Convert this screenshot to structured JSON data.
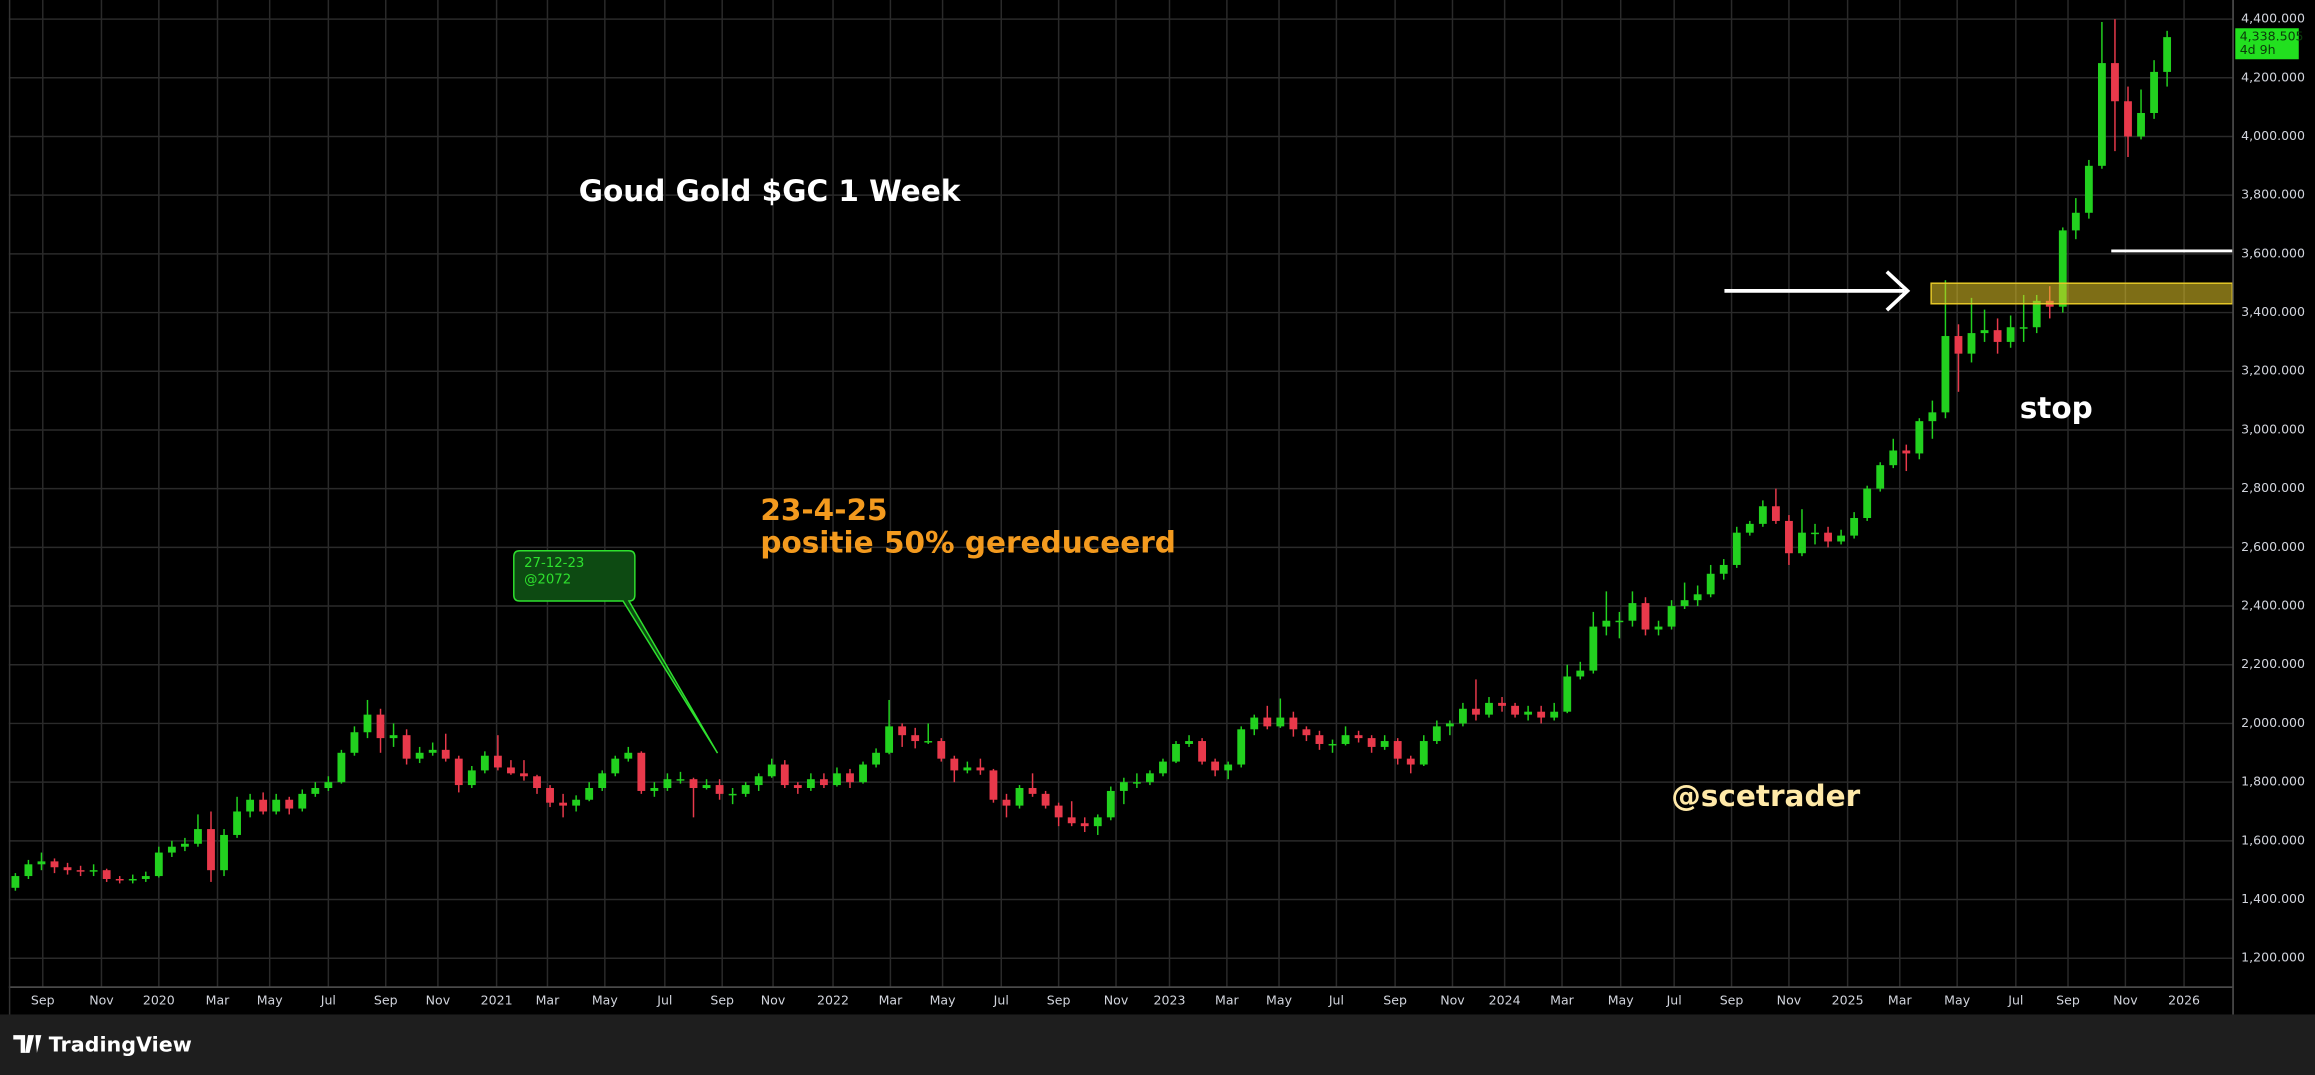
{
  "chart_data": {
    "type": "candlestick",
    "title": "Goud Gold $GC 1 Week",
    "ohlc": [
      [
        1440,
        1490,
        1430,
        1480
      ],
      [
        1480,
        1535,
        1470,
        1520
      ],
      [
        1520,
        1560,
        1500,
        1530
      ],
      [
        1530,
        1540,
        1490,
        1510
      ],
      [
        1510,
        1525,
        1485,
        1500
      ],
      [
        1500,
        1515,
        1480,
        1495
      ],
      [
        1495,
        1520,
        1480,
        1500
      ],
      [
        1500,
        1505,
        1460,
        1470
      ],
      [
        1470,
        1480,
        1455,
        1465
      ],
      [
        1465,
        1485,
        1455,
        1470
      ],
      [
        1470,
        1495,
        1460,
        1480
      ],
      [
        1480,
        1580,
        1475,
        1560
      ],
      [
        1560,
        1600,
        1545,
        1580
      ],
      [
        1580,
        1610,
        1565,
        1590
      ],
      [
        1590,
        1690,
        1580,
        1640
      ],
      [
        1640,
        1700,
        1460,
        1500
      ],
      [
        1500,
        1640,
        1480,
        1620
      ],
      [
        1620,
        1750,
        1610,
        1700
      ],
      [
        1700,
        1760,
        1680,
        1740
      ],
      [
        1740,
        1765,
        1690,
        1700
      ],
      [
        1700,
        1760,
        1690,
        1740
      ],
      [
        1740,
        1750,
        1690,
        1710
      ],
      [
        1710,
        1775,
        1700,
        1760
      ],
      [
        1760,
        1800,
        1750,
        1780
      ],
      [
        1780,
        1820,
        1770,
        1800
      ],
      [
        1800,
        1910,
        1795,
        1900
      ],
      [
        1900,
        1990,
        1890,
        1970
      ],
      [
        1970,
        2080,
        1950,
        2030
      ],
      [
        2030,
        2050,
        1900,
        1950
      ],
      [
        1950,
        2000,
        1920,
        1960
      ],
      [
        1960,
        1980,
        1860,
        1880
      ],
      [
        1880,
        1920,
        1865,
        1900
      ],
      [
        1900,
        1935,
        1890,
        1910
      ],
      [
        1910,
        1965,
        1870,
        1880
      ],
      [
        1880,
        1890,
        1765,
        1790
      ],
      [
        1790,
        1855,
        1780,
        1840
      ],
      [
        1840,
        1905,
        1830,
        1890
      ],
      [
        1890,
        1960,
        1840,
        1850
      ],
      [
        1850,
        1875,
        1825,
        1830
      ],
      [
        1830,
        1875,
        1805,
        1820
      ],
      [
        1820,
        1825,
        1760,
        1780
      ],
      [
        1780,
        1790,
        1715,
        1730
      ],
      [
        1730,
        1760,
        1680,
        1720
      ],
      [
        1720,
        1755,
        1700,
        1740
      ],
      [
        1740,
        1800,
        1735,
        1780
      ],
      [
        1780,
        1840,
        1770,
        1830
      ],
      [
        1830,
        1890,
        1820,
        1880
      ],
      [
        1880,
        1920,
        1870,
        1900
      ],
      [
        1900,
        1905,
        1760,
        1770
      ],
      [
        1770,
        1800,
        1750,
        1780
      ],
      [
        1780,
        1830,
        1770,
        1810
      ],
      [
        1810,
        1835,
        1795,
        1810
      ],
      [
        1810,
        1815,
        1680,
        1780
      ],
      [
        1780,
        1810,
        1775,
        1790
      ],
      [
        1790,
        1810,
        1740,
        1760
      ],
      [
        1760,
        1780,
        1725,
        1760
      ],
      [
        1760,
        1800,
        1750,
        1790
      ],
      [
        1790,
        1830,
        1770,
        1820
      ],
      [
        1820,
        1880,
        1815,
        1860
      ],
      [
        1860,
        1875,
        1780,
        1790
      ],
      [
        1790,
        1800,
        1760,
        1780
      ],
      [
        1780,
        1830,
        1770,
        1810
      ],
      [
        1810,
        1830,
        1780,
        1790
      ],
      [
        1790,
        1850,
        1785,
        1830
      ],
      [
        1830,
        1845,
        1780,
        1800
      ],
      [
        1800,
        1870,
        1795,
        1860
      ],
      [
        1860,
        1915,
        1850,
        1900
      ],
      [
        1900,
        2080,
        1895,
        1990
      ],
      [
        1990,
        2000,
        1920,
        1960
      ],
      [
        1960,
        1985,
        1915,
        1940
      ],
      [
        1940,
        2000,
        1930,
        1940
      ],
      [
        1940,
        1950,
        1870,
        1880
      ],
      [
        1880,
        1890,
        1800,
        1840
      ],
      [
        1840,
        1870,
        1830,
        1850
      ],
      [
        1850,
        1880,
        1825,
        1840
      ],
      [
        1840,
        1845,
        1730,
        1740
      ],
      [
        1740,
        1760,
        1680,
        1720
      ],
      [
        1720,
        1790,
        1710,
        1780
      ],
      [
        1780,
        1830,
        1750,
        1760
      ],
      [
        1760,
        1770,
        1710,
        1720
      ],
      [
        1720,
        1730,
        1650,
        1680
      ],
      [
        1680,
        1735,
        1650,
        1660
      ],
      [
        1660,
        1680,
        1630,
        1650
      ],
      [
        1650,
        1690,
        1620,
        1680
      ],
      [
        1680,
        1785,
        1670,
        1770
      ],
      [
        1770,
        1815,
        1725,
        1800
      ],
      [
        1800,
        1830,
        1780,
        1800
      ],
      [
        1800,
        1840,
        1790,
        1830
      ],
      [
        1830,
        1880,
        1820,
        1870
      ],
      [
        1870,
        1940,
        1865,
        1930
      ],
      [
        1930,
        1960,
        1920,
        1940
      ],
      [
        1940,
        1950,
        1860,
        1870
      ],
      [
        1870,
        1880,
        1820,
        1840
      ],
      [
        1840,
        1870,
        1810,
        1860
      ],
      [
        1860,
        1990,
        1850,
        1980
      ],
      [
        1980,
        2030,
        1960,
        2020
      ],
      [
        2020,
        2060,
        1980,
        1990
      ],
      [
        1990,
        2085,
        1985,
        2020
      ],
      [
        2020,
        2040,
        1955,
        1980
      ],
      [
        1980,
        1990,
        1940,
        1960
      ],
      [
        1960,
        1975,
        1910,
        1930
      ],
      [
        1930,
        1945,
        1900,
        1930
      ],
      [
        1930,
        1990,
        1925,
        1960
      ],
      [
        1960,
        1975,
        1935,
        1950
      ],
      [
        1950,
        1960,
        1900,
        1920
      ],
      [
        1920,
        1960,
        1910,
        1940
      ],
      [
        1940,
        1950,
        1860,
        1880
      ],
      [
        1880,
        1890,
        1830,
        1860
      ],
      [
        1860,
        1960,
        1855,
        1940
      ],
      [
        1940,
        2010,
        1930,
        1990
      ],
      [
        1990,
        2010,
        1960,
        2000
      ],
      [
        2000,
        2070,
        1990,
        2050
      ],
      [
        2050,
        2150,
        2010,
        2030
      ],
      [
        2030,
        2090,
        2020,
        2070
      ],
      [
        2070,
        2090,
        2040,
        2060
      ],
      [
        2060,
        2070,
        2020,
        2030
      ],
      [
        2030,
        2060,
        2010,
        2040
      ],
      [
        2040,
        2060,
        2000,
        2020
      ],
      [
        2020,
        2070,
        2010,
        2040
      ],
      [
        2040,
        2200,
        2035,
        2160
      ],
      [
        2160,
        2210,
        2150,
        2180
      ],
      [
        2180,
        2380,
        2170,
        2330
      ],
      [
        2330,
        2450,
        2300,
        2350
      ],
      [
        2350,
        2380,
        2290,
        2350
      ],
      [
        2350,
        2450,
        2330,
        2410
      ],
      [
        2410,
        2430,
        2300,
        2320
      ],
      [
        2320,
        2350,
        2300,
        2330
      ],
      [
        2330,
        2420,
        2320,
        2400
      ],
      [
        2400,
        2480,
        2390,
        2420
      ],
      [
        2420,
        2470,
        2400,
        2440
      ],
      [
        2440,
        2540,
        2430,
        2510
      ],
      [
        2510,
        2560,
        2490,
        2540
      ],
      [
        2540,
        2670,
        2530,
        2650
      ],
      [
        2650,
        2690,
        2640,
        2680
      ],
      [
        2680,
        2760,
        2670,
        2740
      ],
      [
        2740,
        2800,
        2680,
        2690
      ],
      [
        2690,
        2710,
        2540,
        2580
      ],
      [
        2580,
        2730,
        2570,
        2650
      ],
      [
        2650,
        2680,
        2610,
        2650
      ],
      [
        2650,
        2670,
        2600,
        2620
      ],
      [
        2620,
        2660,
        2610,
        2640
      ],
      [
        2640,
        2720,
        2630,
        2700
      ],
      [
        2700,
        2810,
        2690,
        2800
      ],
      [
        2800,
        2890,
        2790,
        2880
      ],
      [
        2880,
        2970,
        2870,
        2930
      ],
      [
        2930,
        2950,
        2860,
        2920
      ],
      [
        2920,
        3040,
        2900,
        3030
      ],
      [
        3030,
        3100,
        2970,
        3060
      ],
      [
        3060,
        3510,
        3040,
        3320
      ],
      [
        3320,
        3360,
        3130,
        3260
      ],
      [
        3260,
        3450,
        3230,
        3330
      ],
      [
        3330,
        3410,
        3300,
        3340
      ],
      [
        3340,
        3380,
        3260,
        3300
      ],
      [
        3300,
        3390,
        3280,
        3350
      ],
      [
        3350,
        3460,
        3300,
        3350
      ],
      [
        3350,
        3460,
        3330,
        3440
      ],
      [
        3440,
        3490,
        3380,
        3420
      ],
      [
        3420,
        3690,
        3400,
        3680
      ],
      [
        3680,
        3790,
        3650,
        3740
      ],
      [
        3740,
        3920,
        3720,
        3900
      ],
      [
        3900,
        4390,
        3890,
        4250
      ],
      [
        4250,
        4400,
        3950,
        4120
      ],
      [
        4120,
        4170,
        3930,
        4000
      ],
      [
        4000,
        4160,
        3990,
        4080
      ],
      [
        4080,
        4260,
        4060,
        4220
      ],
      [
        4220,
        4360,
        4170,
        4338.505
      ]
    ],
    "up_color": "#22d11f",
    "down_color": "#e8394b",
    "ylim": [
      1104,
      4465
    ],
    "yticks": [
      {
        "value": 1200,
        "label": "1,200.000"
      },
      {
        "value": 1400,
        "label": "1,400.000"
      },
      {
        "value": 1600,
        "label": "1,600.000"
      },
      {
        "value": 1800,
        "label": "1,800.000"
      },
      {
        "value": 2000,
        "label": "2,000.000"
      },
      {
        "value": 2200,
        "label": "2,200.000"
      },
      {
        "value": 2400,
        "label": "2,400.000"
      },
      {
        "value": 2600,
        "label": "2,600.000"
      },
      {
        "value": 2800,
        "label": "2,800.000"
      },
      {
        "value": 3000,
        "label": "3,000.000"
      },
      {
        "value": 3200,
        "label": "3,200.000"
      },
      {
        "value": 3400,
        "label": "3,400.000"
      },
      {
        "value": 3600,
        "label": "3,600.000"
      },
      {
        "value": 3800,
        "label": "3,800.000"
      },
      {
        "value": 4000,
        "label": "4,000.000"
      },
      {
        "value": 4200,
        "label": "4,200.000"
      },
      {
        "value": 4400,
        "label": "4,400.000"
      }
    ],
    "xlim": [
      -0.5,
      170
    ],
    "xticks": [
      {
        "value": 2.1,
        "label": "Sep"
      },
      {
        "value": 6.6,
        "label": "Nov"
      },
      {
        "value": 11.0,
        "label": "2020"
      },
      {
        "value": 15.5,
        "label": "Mar"
      },
      {
        "value": 19.5,
        "label": "May"
      },
      {
        "value": 24.0,
        "label": "Jul"
      },
      {
        "value": 28.4,
        "label": "Sep"
      },
      {
        "value": 32.4,
        "label": "Nov"
      },
      {
        "value": 36.9,
        "label": "2021"
      },
      {
        "value": 40.8,
        "label": "Mar"
      },
      {
        "value": 45.2,
        "label": "May"
      },
      {
        "value": 49.8,
        "label": "Jul"
      },
      {
        "value": 54.2,
        "label": "Sep"
      },
      {
        "value": 58.1,
        "label": "Nov"
      },
      {
        "value": 62.7,
        "label": "2022"
      },
      {
        "value": 67.1,
        "label": "Mar"
      },
      {
        "value": 71.1,
        "label": "May"
      },
      {
        "value": 75.6,
        "label": "Jul"
      },
      {
        "value": 80.0,
        "label": "Sep"
      },
      {
        "value": 84.4,
        "label": "Nov"
      },
      {
        "value": 88.5,
        "label": "2023"
      },
      {
        "value": 92.9,
        "label": "Mar"
      },
      {
        "value": 96.9,
        "label": "May"
      },
      {
        "value": 101.3,
        "label": "Jul"
      },
      {
        "value": 105.8,
        "label": "Sep"
      },
      {
        "value": 110.2,
        "label": "Nov"
      },
      {
        "value": 114.2,
        "label": "2024"
      },
      {
        "value": 118.6,
        "label": "Mar"
      },
      {
        "value": 123.1,
        "label": "May"
      },
      {
        "value": 127.2,
        "label": "Jul"
      },
      {
        "value": 131.6,
        "label": "Sep"
      },
      {
        "value": 136.0,
        "label": "Nov"
      },
      {
        "value": 140.5,
        "label": "2025"
      },
      {
        "value": 144.5,
        "label": "Mar"
      },
      {
        "value": 148.9,
        "label": "May"
      },
      {
        "value": 153.4,
        "label": "Jul"
      },
      {
        "value": 157.4,
        "label": "Sep"
      },
      {
        "value": 161.8,
        "label": "Nov"
      },
      {
        "value": 166.3,
        "label": "2026"
      }
    ],
    "grid": true,
    "last_price": {
      "value": 4338.505,
      "label": "4,338.505"
    },
    "countdown": "4d 9h",
    "zone": [
      3430,
      3500
    ],
    "stop_level": 3610,
    "annotations": {
      "date": "23-4-25",
      "note": "positie 50% gereduceerd",
      "callout": [
        "27-12-23",
        "@2072"
      ],
      "stop": "stop",
      "author": "@scetrader"
    }
  },
  "footer": {
    "brand": "TradingView"
  }
}
